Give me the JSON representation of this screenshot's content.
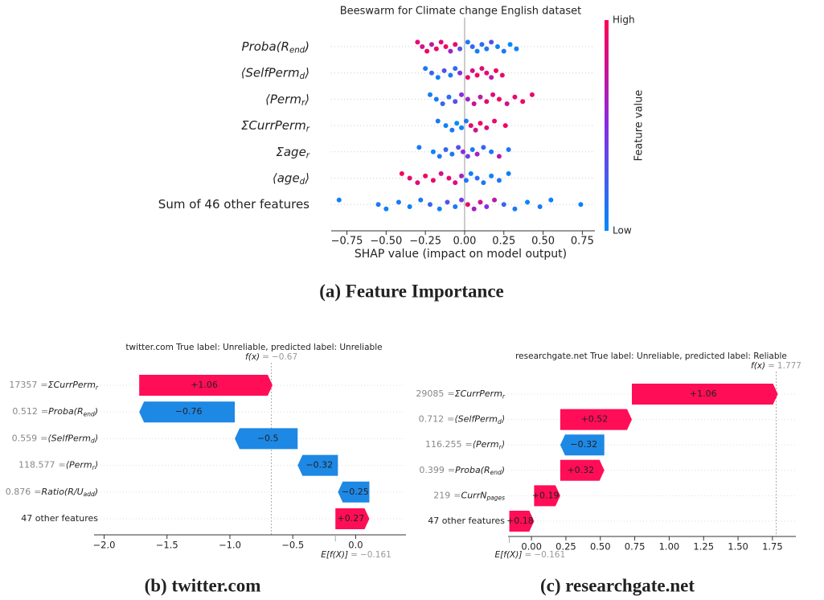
{
  "chart_data": [
    {
      "type": "beeswarm",
      "title": "Beeswarm for Climate change English dataset",
      "xlabel": "SHAP value (impact on model output)",
      "caption": "(a) Feature Importance",
      "categories": [
        {
          "main": "Proba(R",
          "sub": "end",
          "end": ")"
        },
        {
          "main": "⟨SelfPerm",
          "sub": "d",
          "end": "⟩"
        },
        {
          "main": "⟨Perm",
          "sub": "r",
          "end": "⟩"
        },
        {
          "main": "ΣCurrPerm",
          "sub": "r"
        },
        {
          "main": "Σage",
          "sub": "r"
        },
        {
          "main": "⟨age",
          "sub": "d",
          "end": "⟩"
        },
        {
          "main": "Sum of 46 other features"
        }
      ],
      "values": [
        [
          -0.3,
          -0.27,
          -0.24,
          -0.21,
          -0.18,
          -0.15,
          -0.12,
          -0.09,
          -0.06,
          -0.03,
          0.02,
          0.05,
          0.08,
          0.11,
          0.14,
          0.17,
          0.21,
          0.25,
          0.29,
          0.33
        ],
        [
          -0.25,
          -0.21,
          -0.17,
          -0.13,
          -0.09,
          -0.06,
          -0.03,
          0.02,
          0.05,
          0.08,
          0.11,
          0.14,
          0.17,
          0.2,
          0.24
        ],
        [
          -0.22,
          -0.18,
          -0.14,
          -0.1,
          -0.06,
          -0.02,
          0.02,
          0.06,
          0.1,
          0.14,
          0.18,
          0.22,
          0.27,
          0.32,
          0.37,
          0.43
        ],
        [
          -0.17,
          -0.12,
          -0.08,
          -0.05,
          -0.02,
          0.01,
          0.04,
          0.07,
          0.1,
          0.14,
          0.19,
          0.26
        ],
        [
          -0.29,
          -0.2,
          -0.16,
          -0.12,
          -0.08,
          -0.04,
          -0.01,
          0.02,
          0.05,
          0.08,
          0.12,
          0.17,
          0.22,
          0.28
        ],
        [
          -0.4,
          -0.35,
          -0.3,
          -0.25,
          -0.2,
          -0.15,
          -0.1,
          -0.06,
          -0.02,
          0.01,
          0.04,
          0.08,
          0.12,
          0.17,
          0.22,
          0.28
        ],
        [
          -0.8,
          -0.55,
          -0.5,
          -0.42,
          -0.35,
          -0.28,
          -0.22,
          -0.16,
          -0.11,
          -0.06,
          -0.02,
          0.02,
          0.06,
          0.1,
          0.14,
          0.19,
          0.25,
          0.32,
          0.4,
          0.48,
          0.55,
          0.74
        ]
      ],
      "feature_values": [
        [
          0.9,
          0.8,
          0.95,
          0.7,
          0.9,
          0.85,
          0.95,
          0.6,
          0.9,
          0.3,
          0.1,
          0.2,
          0.05,
          0.15,
          0.1,
          0.3,
          0.05,
          0.1,
          0.0,
          0.05
        ],
        [
          0.1,
          0.2,
          0.05,
          0.3,
          0.1,
          0.15,
          0.5,
          0.9,
          0.8,
          0.95,
          0.85,
          0.9,
          0.7,
          0.95,
          0.9
        ],
        [
          0.05,
          0.1,
          0.2,
          0.15,
          0.3,
          0.5,
          0.6,
          0.8,
          0.7,
          0.9,
          0.85,
          0.95,
          0.8,
          0.9,
          0.95,
          0.9
        ],
        [
          0.1,
          0.05,
          0.1,
          0.0,
          0.05,
          0.1,
          0.9,
          0.8,
          0.95,
          0.85,
          0.9,
          0.95
        ],
        [
          0.1,
          0.05,
          0.1,
          0.2,
          0.1,
          0.3,
          0.5,
          0.4,
          0.1,
          0.6,
          0.2,
          0.1,
          0.7,
          0.1
        ],
        [
          0.95,
          0.9,
          0.85,
          0.95,
          0.9,
          0.8,
          0.9,
          0.85,
          0.6,
          0.1,
          0.05,
          0.15,
          0.1,
          0.05,
          0.1,
          0.05
        ],
        [
          0.05,
          0.1,
          0.05,
          0.1,
          0.05,
          0.1,
          0.2,
          0.05,
          0.3,
          0.1,
          0.4,
          0.9,
          0.6,
          0.8,
          0.5,
          0.7,
          0.2,
          0.1,
          0.05,
          0.1,
          0.05,
          0.05
        ]
      ],
      "xlim": [
        -0.85,
        0.83
      ],
      "xticks": [
        {
          "value": -0.75,
          "label": "−0.75"
        },
        {
          "value": -0.5,
          "label": "−0.50"
        },
        {
          "value": -0.25,
          "label": "−0.25"
        },
        {
          "value": 0,
          "label": "0.00"
        },
        0.25,
        {
          "value": 0.5,
          "label": "0.50"
        },
        0.75
      ],
      "colorbar": {
        "label": "Feature value",
        "high": "High",
        "low": "Low",
        "colors": [
          "#008bfb",
          "#8a2be2",
          "#ff0052"
        ]
      }
    },
    {
      "type": "waterfall",
      "title": "twitter.com True label: Unreliable, predicted label: Unreliable",
      "caption": "(b) twitter.com",
      "separator": "=",
      "features": [
        {
          "main": "ΣCurrPerm",
          "sub": "r"
        },
        {
          "main": "Proba(R",
          "sub": "end",
          "end": ")"
        },
        {
          "main": "⟨SelfPerm",
          "sub": "d",
          "end": "⟩"
        },
        {
          "main": "⟨Perm",
          "sub": "r",
          "end": "⟩"
        },
        {
          "main": "Ratio(R/U",
          "sub": "add",
          "end": ")"
        },
        {
          "main": "47 other features"
        }
      ],
      "feature_values": [
        17357,
        0.512,
        0.559,
        118.577,
        0.876,
        null
      ],
      "values": [
        1.06,
        -0.76,
        -0.5,
        -0.32,
        -0.25,
        0.27
      ],
      "value_labels": [
        "+1.06",
        "−0.76",
        "−0.5",
        "−0.32",
        "−0.25",
        "+0.27"
      ],
      "fx": {
        "label": "f(x)",
        "value": -0.67,
        "value_label": "−0.67"
      },
      "base": {
        "label": "E[f(X)]",
        "value": -0.161,
        "value_label": "−0.161"
      },
      "colors": {
        "positive": "#ff0d57",
        "negative": "#1e88e5"
      },
      "xlim": [
        -2.08,
        0.4
      ],
      "xticks": [
        {
          "value": -2,
          "label": "−2.0"
        },
        {
          "value": -1.5,
          "label": "−1.5"
        },
        {
          "value": -1,
          "label": "−1.0"
        },
        {
          "value": -0.5,
          "label": "−0.5"
        },
        {
          "value": 0,
          "label": "0.0"
        }
      ]
    },
    {
      "type": "waterfall",
      "title": "researchgate.net True label: Unreliable, predicted label: Reliable",
      "caption": "(c) researchgate.net",
      "separator": "=",
      "features": [
        {
          "main": "ΣCurrPerm",
          "sub": "r"
        },
        {
          "main": "⟨SelfPerm",
          "sub": "d",
          "end": "⟩"
        },
        {
          "main": "⟨Perm",
          "sub": "r",
          "end": "⟩"
        },
        {
          "main": "Proba(R",
          "sub": "end",
          "end": ")"
        },
        {
          "main": "CurrN",
          "sub": "pages"
        },
        {
          "main": "47 other features"
        }
      ],
      "feature_values": [
        29085,
        0.712,
        116.255,
        0.399,
        219,
        null
      ],
      "values": [
        1.06,
        0.52,
        -0.32,
        0.32,
        0.19,
        0.18
      ],
      "value_labels": [
        "+1.06",
        "+0.52",
        "−0.32",
        "+0.32",
        "+0.19",
        "+0.18"
      ],
      "fx": {
        "label": "f(x)",
        "value": 1.777,
        "value_label": "1.777"
      },
      "base": {
        "label": "E[f(X)]",
        "value": -0.161,
        "value_label": "−0.161"
      },
      "colors": {
        "positive": "#ff0d57",
        "negative": "#1e88e5"
      },
      "xlim": [
        -0.17,
        1.92
      ],
      "xticks": [
        {
          "value": 0,
          "label": "0.00"
        },
        0.25,
        {
          "value": 0.5,
          "label": "0.50"
        },
        0.75,
        {
          "value": 1,
          "label": "1.00"
        },
        1.25,
        {
          "value": 1.5,
          "label": "1.50"
        },
        1.75
      ]
    }
  ]
}
